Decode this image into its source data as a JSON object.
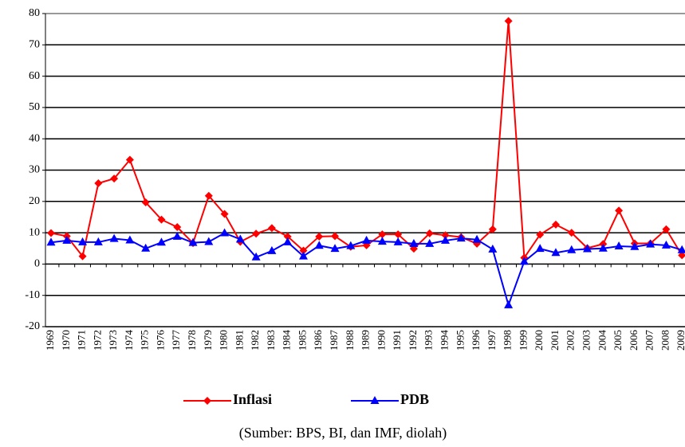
{
  "chart_data": {
    "type": "line",
    "categories": [
      "1969",
      "1970",
      "1971",
      "1972",
      "1973",
      "1974",
      "1975",
      "1976",
      "1977",
      "1978",
      "1979",
      "1980",
      "1981",
      "1982",
      "1983",
      "1984",
      "1985",
      "1986",
      "1987",
      "1988",
      "1989",
      "1990",
      "1991",
      "1992",
      "1993",
      "1994",
      "1995",
      "1996",
      "1997",
      "1998",
      "1999",
      "2000",
      "2001",
      "2002",
      "2003",
      "2004",
      "2005",
      "2006",
      "2007",
      "2008",
      "2009"
    ],
    "series": [
      {
        "name": "Inflasi",
        "color": "#ff0000",
        "marker": "diamond",
        "values": [
          9.9,
          8.9,
          2.5,
          25.8,
          27.3,
          33.3,
          19.7,
          14.2,
          11.8,
          6.7,
          21.8,
          16.0,
          7.1,
          9.7,
          11.5,
          8.8,
          4.3,
          8.8,
          8.9,
          5.5,
          6.0,
          9.5,
          9.5,
          4.9,
          9.8,
          9.2,
          8.6,
          6.5,
          11.1,
          77.6,
          2.0,
          9.4,
          12.6,
          10.0,
          5.1,
          6.4,
          17.1,
          6.6,
          6.6,
          11.1,
          2.8
        ]
      },
      {
        "name": "PDB",
        "color": "#0000ff",
        "marker": "triangle",
        "values": [
          6.9,
          7.5,
          7.0,
          7.0,
          8.1,
          7.6,
          5.0,
          6.9,
          8.8,
          6.8,
          7.1,
          9.9,
          7.9,
          2.2,
          4.2,
          7.0,
          2.5,
          5.9,
          4.9,
          5.8,
          7.5,
          7.2,
          7.0,
          6.5,
          6.5,
          7.5,
          8.2,
          7.8,
          4.7,
          -13.1,
          0.8,
          4.9,
          3.6,
          4.5,
          4.8,
          5.0,
          5.7,
          5.5,
          6.3,
          6.0,
          4.5
        ]
      }
    ],
    "ylim": [
      -20,
      80
    ],
    "yticks": [
      -20,
      -10,
      0,
      10,
      20,
      30,
      40,
      50,
      60,
      70,
      80
    ],
    "grid": true,
    "caption": "(Sumber: BPS, BI, dan IMF, diolah)"
  }
}
